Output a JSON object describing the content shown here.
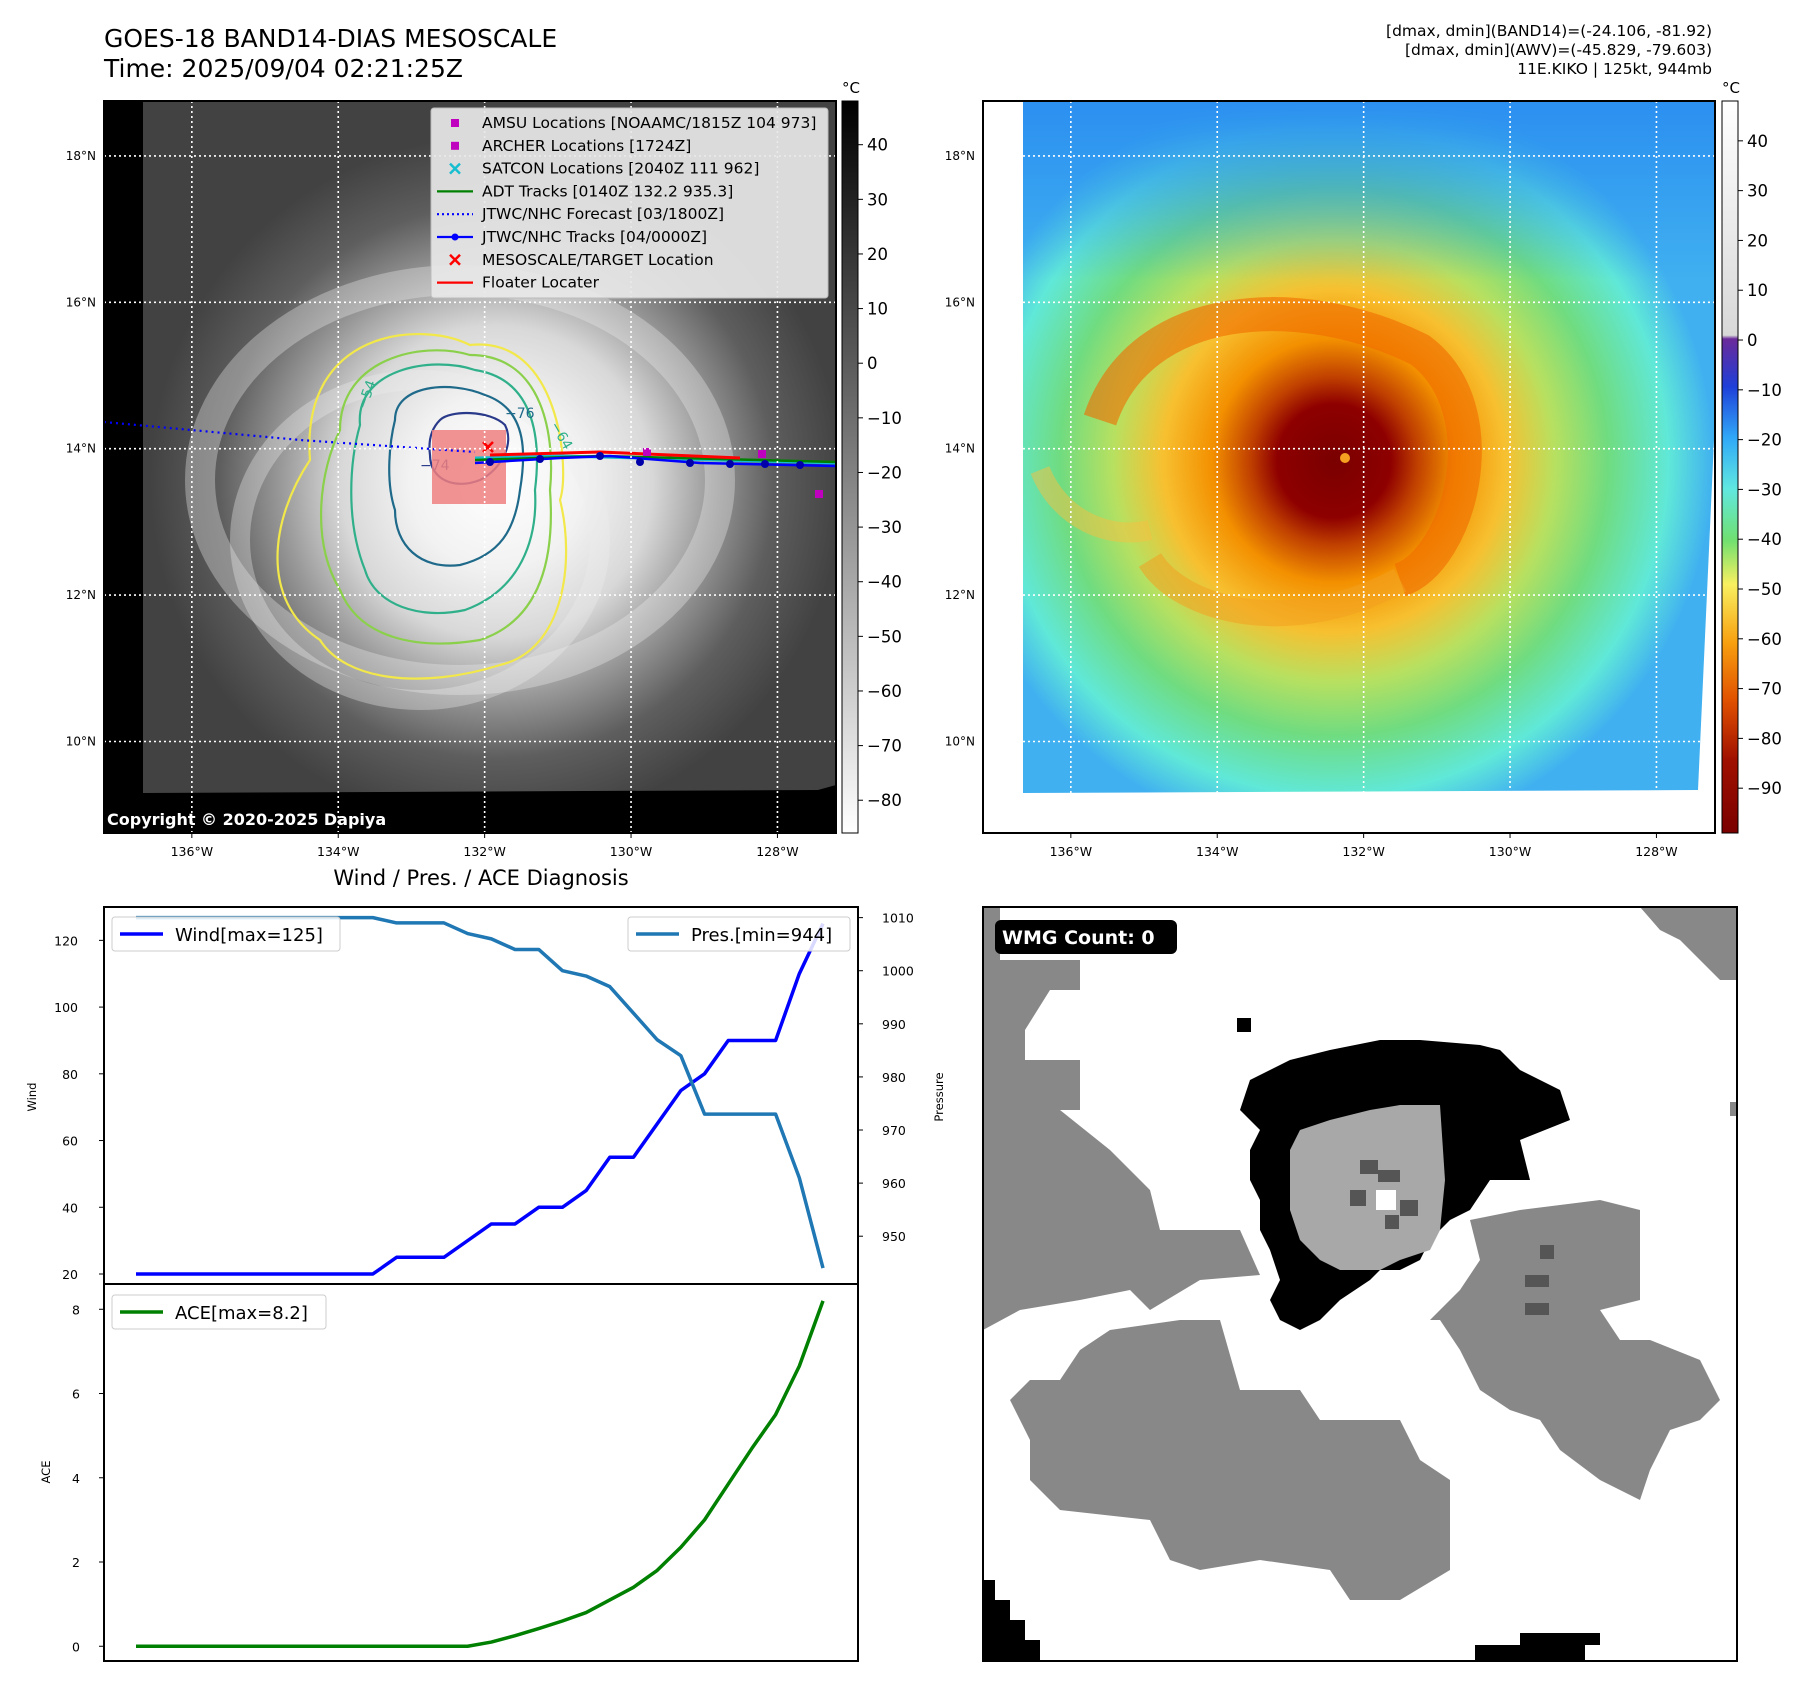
{
  "header": {
    "title_line1": "GOES-18 BAND14-DIAS MESOSCALE",
    "title_line2": "Time: 2025/09/04 02:21:25Z",
    "info_line1": "[dmax, dmin](BAND14)=(-24.106, -81.92)",
    "info_line2": "[dmax, dmin](AWV)=(-45.829, -79.603)",
    "info_line3": "11E.KIKO | 125kt, 944mb"
  },
  "map_axes": {
    "lat_ticks": [
      "18°N",
      "16°N",
      "14°N",
      "12°N",
      "10°N"
    ],
    "lon_ticks": [
      "136°W",
      "134°W",
      "132°W",
      "130°W",
      "128°W"
    ],
    "lat_values": [
      18,
      16,
      14,
      12,
      10
    ],
    "lon_values": [
      -136,
      -134,
      -132,
      -130,
      -128
    ],
    "lat_range": [
      8.75,
      18.75
    ],
    "lon_range": [
      -137.2,
      -127.2
    ]
  },
  "ir_panel": {
    "copyright": "Copyright © 2020-2025 Dapiya",
    "colorbar_unit": "°C",
    "colorbar_ticks": [
      "40",
      "30",
      "20",
      "10",
      "0",
      "−10",
      "−20",
      "−30",
      "−40",
      "−50",
      "−60",
      "−70",
      "−80"
    ],
    "colorbar_range": [
      48,
      -86
    ],
    "contour_labels": [
      "−54",
      "−64",
      "−76",
      "−74"
    ],
    "legend": [
      {
        "label": "AMSU Locations [NOAAMC/1815Z 104 973]",
        "marker": "square",
        "color": "#bf00bf"
      },
      {
        "label": "ARCHER Locations [1724Z]",
        "marker": "square",
        "color": "#bf00bf"
      },
      {
        "label": "SATCON Locations [2040Z 111 962]",
        "marker": "x",
        "color": "#17becf"
      },
      {
        "label": "ADT Tracks [0140Z 132.2 935.3]",
        "marker": "line",
        "color": "#008000"
      },
      {
        "label": "JTWC/NHC Forecast [03/1800Z]",
        "marker": "dotted",
        "color": "#0000ff"
      },
      {
        "label": "JTWC/NHC Tracks [04/0000Z]",
        "marker": "line-dot",
        "color": "#0000ff"
      },
      {
        "label": "MESOSCALE/TARGET Location",
        "marker": "x",
        "color": "#ff0000"
      },
      {
        "label": "Floater Locater",
        "marker": "line",
        "color": "#ff0000"
      }
    ]
  },
  "awv_panel": {
    "colorbar_unit": "°C",
    "colorbar_ticks": [
      "40",
      "30",
      "20",
      "10",
      "0",
      "−10",
      "−20",
      "−30",
      "−40",
      "−50",
      "−60",
      "−70",
      "−80",
      "−90"
    ],
    "colorbar_range": [
      48,
      -99
    ]
  },
  "chart_data": [
    {
      "type": "line",
      "title": "Wind / Pres. / ACE Diagnosis",
      "ylabel": "Wind",
      "y2label": "Pressure",
      "ylim": [
        17,
        130
      ],
      "y2lim": [
        941,
        1012
      ],
      "yticks": [
        20,
        40,
        60,
        80,
        100,
        120
      ],
      "y2ticks": [
        950,
        960,
        970,
        980,
        990,
        1000,
        1010
      ],
      "series": [
        {
          "name": "Wind[max=125]",
          "axis": "left",
          "color": "#0000ff",
          "values": [
            20,
            20,
            20,
            20,
            20,
            20,
            20,
            20,
            20,
            20,
            20,
            25,
            25,
            25,
            30,
            35,
            35,
            40,
            40,
            45,
            55,
            55,
            65,
            75,
            80,
            90,
            90,
            90,
            110,
            125
          ]
        },
        {
          "name": "Pres.[min=944]",
          "axis": "right",
          "color": "#1f77b4",
          "values": [
            1010,
            1010,
            1010,
            1010,
            1010,
            1010,
            1010,
            1010,
            1010,
            1010,
            1010,
            1009,
            1009,
            1009,
            1007,
            1006,
            1004,
            1004,
            1000,
            999,
            997,
            992,
            987,
            984,
            973,
            973,
            973,
            973,
            961,
            944
          ]
        }
      ]
    },
    {
      "type": "line",
      "ylabel": "ACE",
      "ylim": [
        -0.35,
        8.6
      ],
      "yticks": [
        0,
        2,
        4,
        6,
        8
      ],
      "series": [
        {
          "name": "ACE[max=8.2]",
          "color": "#008000",
          "values": [
            0,
            0,
            0,
            0,
            0,
            0,
            0,
            0,
            0,
            0,
            0,
            0,
            0,
            0,
            0,
            0.1,
            0.25,
            0.42,
            0.6,
            0.8,
            1.1,
            1.4,
            1.8,
            2.35,
            3.0,
            3.85,
            4.7,
            5.5,
            6.65,
            8.2
          ]
        }
      ]
    }
  ],
  "wmg_panel": {
    "badge": "WMG Count: 0",
    "colors": {
      "white": "#ffffff",
      "light": "#a8a8a8",
      "gray": "#888888",
      "dark": "#555555",
      "black": "#000000"
    }
  }
}
